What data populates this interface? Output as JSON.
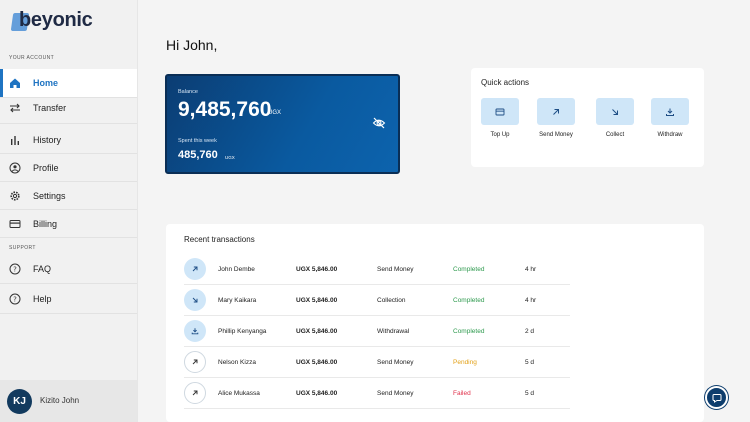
{
  "brand": {
    "name": "beyonic"
  },
  "sidebar": {
    "account_label": "YOUR ACCOUNT",
    "support_label": "SUPPORT",
    "items": [
      {
        "label": "Home",
        "icon": "home-icon"
      },
      {
        "label": "Transfer",
        "icon": "transfer-icon"
      },
      {
        "label": "History",
        "icon": "history-icon"
      },
      {
        "label": "Profile",
        "icon": "profile-icon"
      },
      {
        "label": "Settings",
        "icon": "gear-icon"
      },
      {
        "label": "Billing",
        "icon": "card-icon"
      }
    ],
    "support_items": [
      {
        "label": "FAQ",
        "icon": "question-icon"
      },
      {
        "label": "Help",
        "icon": "help-icon"
      }
    ],
    "user": {
      "initials": "KJ",
      "name": "Kizito John"
    }
  },
  "main": {
    "greeting": "Hi John,",
    "balance": {
      "label": "Balance",
      "amount": "9,485,760",
      "currency": "UGX",
      "spent_label": "Spent this week",
      "spent_amount": "485,760",
      "spent_currency": "UGX"
    },
    "quick_actions": {
      "title": "Quick actions",
      "items": [
        {
          "label": "Top Up",
          "icon": "card-icon"
        },
        {
          "label": "Send Money",
          "icon": "arrow-up-right-icon"
        },
        {
          "label": "Collect",
          "icon": "arrow-down-right-icon"
        },
        {
          "label": "Withdraw",
          "icon": "download-icon"
        }
      ]
    },
    "transactions": {
      "title": "Recent transactions",
      "rows": [
        {
          "name": "John Dembe",
          "amount": "UGX 5,846.00",
          "type": "Send Money",
          "status": "Completed",
          "time": "4 hr",
          "icon": "arrow-up-right-icon",
          "style": "filled"
        },
        {
          "name": "Mary Kaikara",
          "amount": "UGX 5,846.00",
          "type": "Collection",
          "status": "Completed",
          "time": "4 hr",
          "icon": "arrow-down-right-icon",
          "style": "filled"
        },
        {
          "name": "Phillip Kenyanga",
          "amount": "UGX 5,846.00",
          "type": "Withdrawal",
          "status": "Completed",
          "time": "2 d",
          "icon": "download-icon",
          "style": "filled"
        },
        {
          "name": "Nelson Kizza",
          "amount": "UGX 5,846.00",
          "type": "Send Money",
          "status": "Pending",
          "time": "5 d",
          "icon": "arrow-up-right-icon",
          "style": "outline"
        },
        {
          "name": "Alice Mukassa",
          "amount": "UGX 5,846.00",
          "type": "Send Money",
          "status": "Failed",
          "time": "5 d",
          "icon": "arrow-up-right-icon",
          "style": "outline"
        }
      ]
    }
  },
  "colors": {
    "accent": "#1f74c2",
    "completed": "#2e9a4e",
    "pending": "#e3a21a",
    "failed": "#e0314b"
  }
}
